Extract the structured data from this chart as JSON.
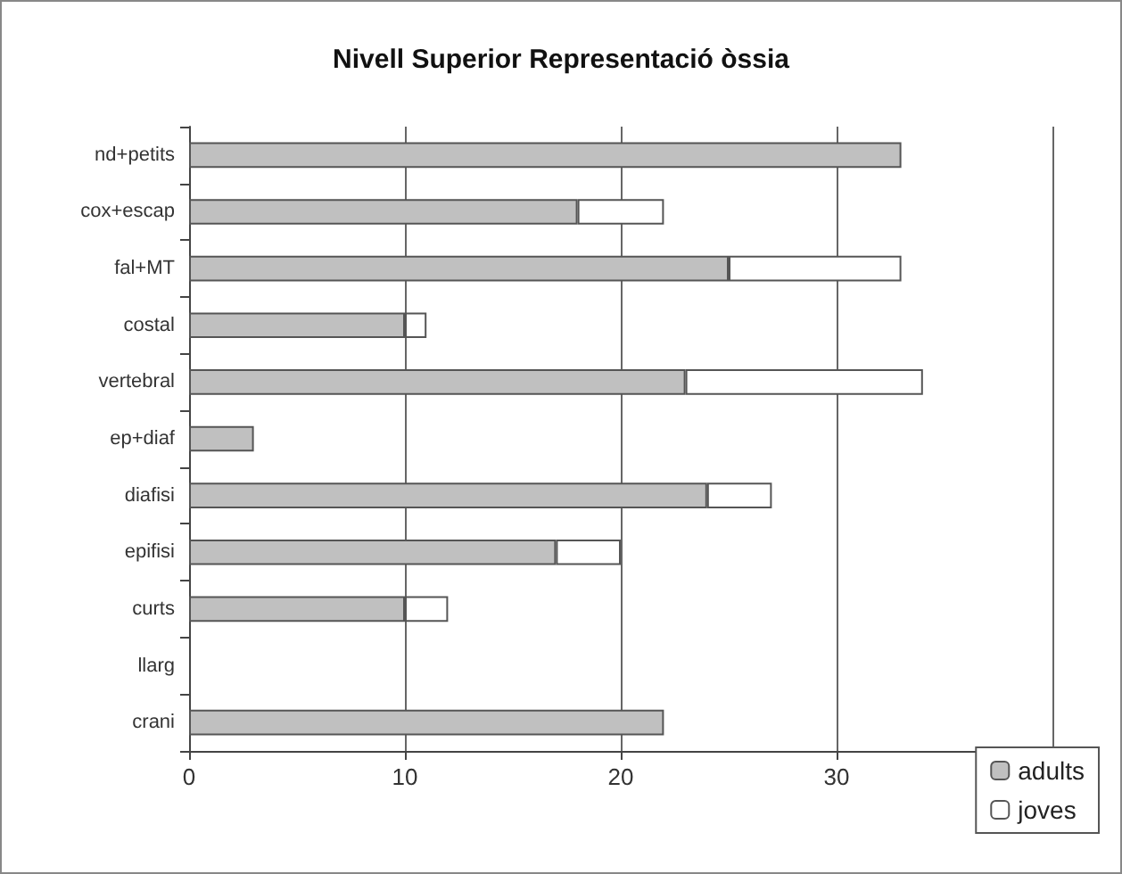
{
  "chart_data": {
    "type": "bar",
    "orientation": "horizontal",
    "stacked": true,
    "title": "Nivell Superior Representació òssia",
    "categories": [
      "nd+petits",
      "cox+escap",
      "fal+MT",
      "costal",
      "vertebral",
      "ep+diaf",
      "diafisi",
      "epifisi",
      "curts",
      "llarg",
      "crani"
    ],
    "series": [
      {
        "name": "adults",
        "color": "#c0c0c0",
        "values": [
          33,
          18,
          25,
          10,
          23,
          3,
          24,
          17,
          10,
          0,
          22
        ]
      },
      {
        "name": "joves",
        "color": "#ffffff",
        "values": [
          0,
          4,
          8,
          1,
          11,
          0,
          3,
          3,
          2,
          0,
          0
        ]
      }
    ],
    "xlim": [
      0,
      40
    ],
    "xticks": [
      0,
      10,
      20,
      30,
      {
        "value": 40,
        "label": null
      }
    ],
    "grid": "x",
    "legend": "bottom right"
  }
}
